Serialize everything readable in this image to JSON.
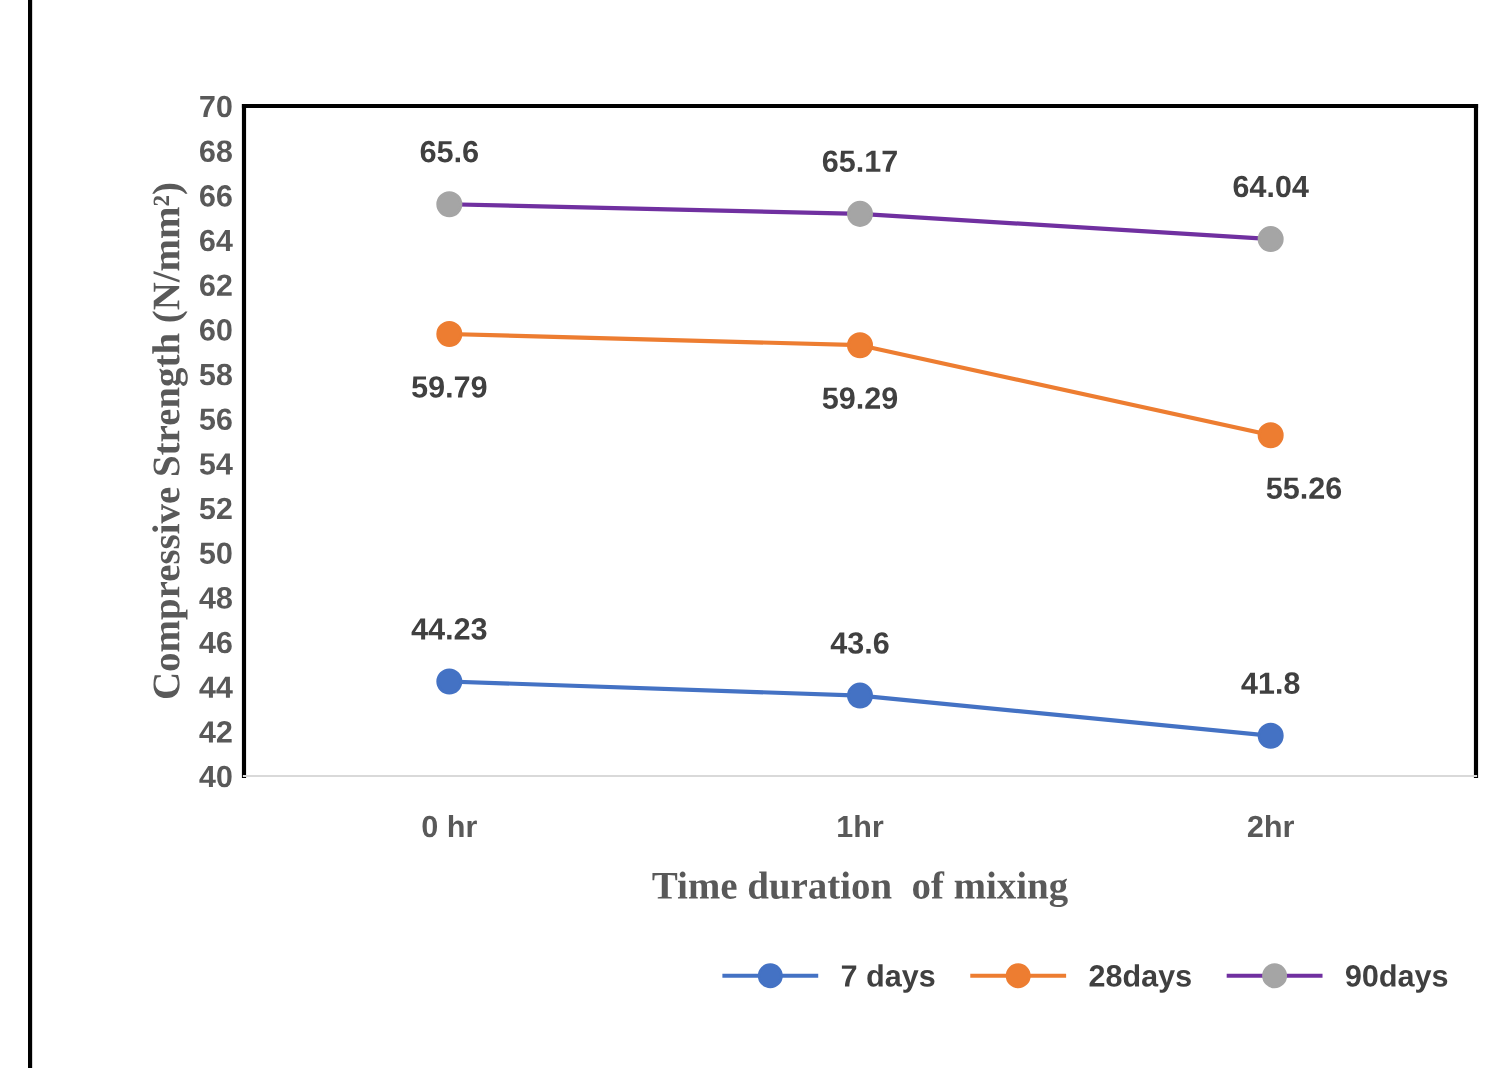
{
  "chart_data": {
    "type": "line",
    "xlabel": "Time duration  of mixing",
    "ylabel": "Compressive Strength (N/mm²)",
    "categories": [
      "0 hr",
      "1hr",
      "2hr"
    ],
    "series": [
      {
        "name": "7 days",
        "color": "#4472c4",
        "values": [
          44.23,
          43.6,
          41.8
        ]
      },
      {
        "name": "28days",
        "color": "#ed7d31",
        "values": [
          59.79,
          59.29,
          55.26
        ]
      },
      {
        "name": "90days",
        "color": "#7030a0",
        "colors": [
          "#a5a5a5",
          "#a5a5a5",
          "#a5a5a5"
        ],
        "values": [
          65.6,
          65.17,
          64.04
        ]
      }
    ],
    "ylim": [
      40,
      70
    ],
    "yticks": [
      40,
      42,
      44,
      46,
      48,
      50,
      52,
      54,
      56,
      58,
      60,
      62,
      64,
      66,
      68,
      70
    ],
    "grid": false,
    "legend": "bottom",
    "marker": "circle",
    "line_style": "solid",
    "data_labels": true
  }
}
